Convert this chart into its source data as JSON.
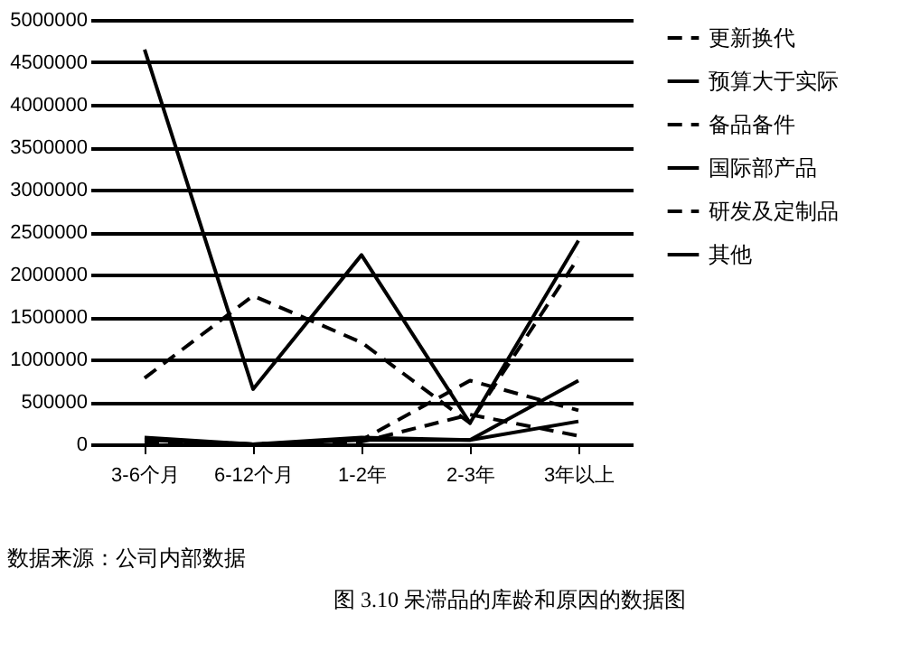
{
  "chart_data": {
    "type": "line",
    "title": "图 3.10 呆滞品的库龄和原因的数据图",
    "annotations": [
      "数据来源：公司内部数据"
    ],
    "categories": [
      "3-6个月",
      "6-12个月",
      "1-2年",
      "2-3年",
      "3年以上"
    ],
    "ylim": [
      0,
      5000000
    ],
    "yticks": [
      0,
      500000,
      1000000,
      1500000,
      2000000,
      2500000,
      3000000,
      3500000,
      4000000,
      4500000,
      5000000
    ],
    "grid": "y",
    "legend": "right",
    "marker": "none",
    "series": [
      {
        "name": "更新换代",
        "color": "#000000",
        "line_style": "dashed",
        "values": [
          780000,
          1750000,
          1200000,
          250000,
          2200000
        ]
      },
      {
        "name": "预算大于实际",
        "color": "#000000",
        "line_style": "solid",
        "values": [
          4650000,
          650000,
          2230000,
          250000,
          2400000
        ]
      },
      {
        "name": "备品备件",
        "color": "#000000",
        "line_style": "dashed",
        "values": [
          50000,
          0,
          50000,
          750000,
          400000
        ]
      },
      {
        "name": "国际部产品",
        "color": "#000000",
        "line_style": "solid",
        "values": [
          50000,
          0,
          50000,
          50000,
          750000
        ]
      },
      {
        "name": "研发及定制品",
        "color": "#000000",
        "line_style": "dashed",
        "values": [
          30000,
          0,
          30000,
          350000,
          100000
        ]
      },
      {
        "name": "其他",
        "color": "#000000",
        "line_style": "solid",
        "values": [
          80000,
          0,
          80000,
          50000,
          270000
        ]
      }
    ]
  }
}
